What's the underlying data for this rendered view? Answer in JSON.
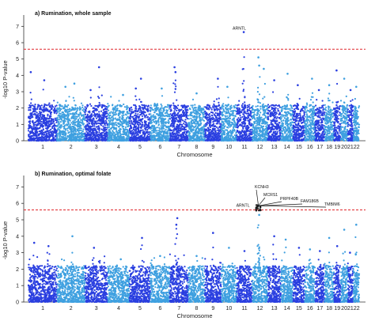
{
  "chart_data": [
    {
      "type": "scatter",
      "title": "a) Rumination, whole sample",
      "xlabel": "Chromosome",
      "ylabel": "-log10 P-value",
      "ylim": [
        0,
        7.5
      ],
      "yticks": [
        0,
        1,
        2,
        3,
        4,
        5,
        6,
        7
      ],
      "chromosomes": [
        "1",
        "2",
        "3",
        "4",
        "5",
        "6",
        "7",
        "8",
        "9",
        "10",
        "11",
        "12",
        "13",
        "14",
        "15",
        "16",
        "17",
        "18",
        "19",
        "20",
        "21",
        "22"
      ],
      "chromosome_ticks_shown": [
        "1",
        "2",
        "3",
        "4",
        "5",
        "6",
        "7",
        "8",
        "9",
        "10",
        "11",
        "12",
        "13",
        "14",
        "15",
        "16",
        "17",
        "18",
        "19",
        "20",
        "2122"
      ],
      "chromosome_sizes_relative": [
        249,
        243,
        198,
        191,
        181,
        171,
        159,
        146,
        141,
        136,
        135,
        134,
        115,
        107,
        102,
        90,
        83,
        80,
        59,
        63,
        48,
        51
      ],
      "threshold_log10p": 5.6,
      "colors": {
        "odd_chromosome": "#2a3fe0",
        "even_chromosome": "#3fa0e0",
        "threshold": "#e0262b"
      },
      "peaks": [
        {
          "chr": "1",
          "pos": 0.08,
          "y": 4.2
        },
        {
          "chr": "1",
          "pos": 0.55,
          "y": 3.7
        },
        {
          "chr": "2",
          "pos": 0.3,
          "y": 3.3
        },
        {
          "chr": "2",
          "pos": 0.62,
          "y": 3.5
        },
        {
          "chr": "3",
          "pos": 0.62,
          "y": 4.5
        },
        {
          "chr": "3",
          "pos": 0.25,
          "y": 3.1
        },
        {
          "chr": "4",
          "pos": 0.7,
          "y": 2.8
        },
        {
          "chr": "5",
          "pos": 0.55,
          "y": 3.8
        },
        {
          "chr": "5",
          "pos": 0.3,
          "y": 3.2
        },
        {
          "chr": "6",
          "pos": 0.58,
          "y": 3.2
        },
        {
          "chr": "7",
          "pos": 0.25,
          "y": 4.5
        },
        {
          "chr": "7",
          "pos": 0.3,
          "y": 4.2
        },
        {
          "chr": "8",
          "pos": 0.5,
          "y": 2.9
        },
        {
          "chr": "9",
          "pos": 0.8,
          "y": 3.8
        },
        {
          "chr": "10",
          "pos": 0.4,
          "y": 3.3
        },
        {
          "chr": "11",
          "pos": 0.45,
          "y": 6.65
        },
        {
          "chr": "12",
          "pos": 0.4,
          "y": 5.1
        },
        {
          "chr": "12",
          "pos": 0.45,
          "y": 4.6
        },
        {
          "chr": "12",
          "pos": 0.75,
          "y": 4.4
        },
        {
          "chr": "13",
          "pos": 0.5,
          "y": 3.7
        },
        {
          "chr": "14",
          "pos": 0.55,
          "y": 4.1
        },
        {
          "chr": "15",
          "pos": 0.4,
          "y": 3.4
        },
        {
          "chr": "16",
          "pos": 0.7,
          "y": 3.8
        },
        {
          "chr": "17",
          "pos": 0.4,
          "y": 3.1
        },
        {
          "chr": "18",
          "pos": 0.5,
          "y": 3.4
        },
        {
          "chr": "19",
          "pos": 0.4,
          "y": 4.3
        },
        {
          "chr": "20",
          "pos": 0.5,
          "y": 3.8
        },
        {
          "chr": "21",
          "pos": 0.5,
          "y": 3.1
        },
        {
          "chr": "22",
          "pos": 0.5,
          "y": 3.3
        }
      ],
      "annotations": [
        {
          "label": "ARNTL",
          "chr": "11",
          "pos": 0.45,
          "y": 6.65
        }
      ]
    },
    {
      "type": "scatter",
      "title": "b) Rumination, optimal folate",
      "xlabel": "Chromosome",
      "ylabel": "-log10 P-value",
      "ylim": [
        0,
        7.5
      ],
      "yticks": [
        0,
        1,
        2,
        3,
        4,
        5,
        6,
        7
      ],
      "chromosomes": [
        "1",
        "2",
        "3",
        "4",
        "5",
        "6",
        "7",
        "8",
        "9",
        "10",
        "11",
        "12",
        "13",
        "14",
        "15",
        "16",
        "17",
        "18",
        "19",
        "20",
        "21",
        "22"
      ],
      "chromosome_ticks_shown": [
        "1",
        "2",
        "3",
        "4",
        "5",
        "6",
        "7",
        "8",
        "9",
        "10",
        "11",
        "12",
        "13",
        "14",
        "15",
        "16",
        "17",
        "18",
        "19",
        "20",
        "2122"
      ],
      "chromosome_sizes_relative": [
        249,
        243,
        198,
        191,
        181,
        171,
        159,
        146,
        141,
        136,
        135,
        134,
        115,
        107,
        102,
        90,
        83,
        80,
        59,
        63,
        48,
        51
      ],
      "threshold_log10p": 5.6,
      "colors": {
        "odd_chromosome": "#2a3fe0",
        "even_chromosome": "#3fa0e0",
        "threshold": "#e0262b"
      },
      "peaks": [
        {
          "chr": "1",
          "pos": 0.2,
          "y": 3.6
        },
        {
          "chr": "1",
          "pos": 0.7,
          "y": 3.4
        },
        {
          "chr": "2",
          "pos": 0.55,
          "y": 4.0
        },
        {
          "chr": "3",
          "pos": 0.4,
          "y": 3.3
        },
        {
          "chr": "4",
          "pos": 0.6,
          "y": 2.6
        },
        {
          "chr": "5",
          "pos": 0.6,
          "y": 3.9
        },
        {
          "chr": "6",
          "pos": 0.5,
          "y": 2.8
        },
        {
          "chr": "7",
          "pos": 0.4,
          "y": 5.1
        },
        {
          "chr": "7",
          "pos": 0.35,
          "y": 4.7
        },
        {
          "chr": "8",
          "pos": 0.5,
          "y": 2.8
        },
        {
          "chr": "9",
          "pos": 0.5,
          "y": 4.2
        },
        {
          "chr": "10",
          "pos": 0.5,
          "y": 3.3
        },
        {
          "chr": "11",
          "pos": 0.5,
          "y": 3.1
        },
        {
          "chr": "12",
          "pos": 0.4,
          "y": 5.85
        },
        {
          "chr": "12",
          "pos": 0.45,
          "y": 5.3
        },
        {
          "chr": "13",
          "pos": 0.5,
          "y": 4.0
        },
        {
          "chr": "14",
          "pos": 0.4,
          "y": 3.8
        },
        {
          "chr": "15",
          "pos": 0.5,
          "y": 3.3
        },
        {
          "chr": "16",
          "pos": 0.5,
          "y": 3.2
        },
        {
          "chr": "17",
          "pos": 0.5,
          "y": 3.1
        },
        {
          "chr": "18",
          "pos": 0.5,
          "y": 3.9
        },
        {
          "chr": "19",
          "pos": 0.5,
          "y": 3.4
        },
        {
          "chr": "20",
          "pos": 0.5,
          "y": 4.4
        },
        {
          "chr": "21",
          "pos": 0.4,
          "y": 3.0
        },
        {
          "chr": "22",
          "pos": 0.5,
          "y": 4.7
        }
      ],
      "annotations": [
        {
          "label": "ARNTL",
          "chr": "12",
          "pos": 0.4,
          "y": 5.85
        },
        {
          "label": "KCNH3",
          "chr": "12",
          "pos": 0.4,
          "y": 5.85
        },
        {
          "label": "MCRS1",
          "chr": "12",
          "pos": 0.4,
          "y": 5.85
        },
        {
          "label": "PRPF40B",
          "chr": "12",
          "pos": 0.4,
          "y": 5.85
        },
        {
          "label": "FAM186B",
          "chr": "12",
          "pos": 0.4,
          "y": 5.85
        },
        {
          "label": "TMBIM6",
          "chr": "12",
          "pos": 0.4,
          "y": 5.85
        }
      ]
    }
  ]
}
